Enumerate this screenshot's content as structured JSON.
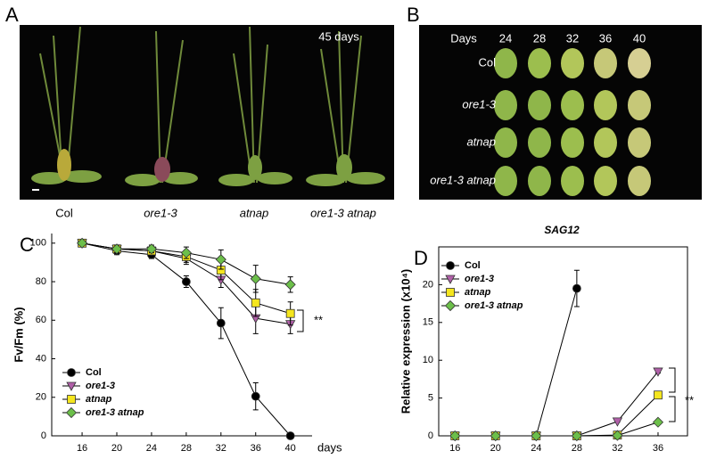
{
  "panel_a": {
    "letter": "A",
    "age": "45 days",
    "labels": [
      "Col",
      "ore1-3",
      "atnap",
      "ore1-3 atnap"
    ]
  },
  "panel_b": {
    "letter": "B",
    "header": "Days",
    "days": [
      24,
      28,
      32,
      36,
      40
    ],
    "rows": [
      "Col",
      "ore1-3",
      "atnap",
      "ore1-3 atnap"
    ]
  },
  "chart_data": [
    {
      "type": "line",
      "letter": "C",
      "ylabel": "Fv/Fm (%)",
      "xlabel": "days",
      "annotation": "**",
      "legend": "lower left",
      "box": false,
      "x": [
        16,
        20,
        24,
        28,
        32,
        36,
        40
      ],
      "xlim": [
        12.5,
        42.5
      ],
      "xticks": [
        16,
        20,
        24,
        28,
        32,
        36,
        40
      ],
      "ylim": [
        0,
        105
      ],
      "yticks": [
        0,
        20,
        40,
        60,
        80,
        100
      ],
      "series": [
        {
          "name": "Col",
          "color": "#000000",
          "marker": "circle",
          "values": [
            100,
            96,
            94,
            80,
            58.5,
            20.5,
            0
          ],
          "errors": [
            1,
            2,
            2,
            3,
            8,
            7,
            0
          ]
        },
        {
          "name": "ore1-3",
          "color": "#b05fa8",
          "marker": "triangle-down",
          "values": [
            100,
            97,
            96,
            92,
            81,
            61,
            58
          ],
          "errors": [
            1,
            2,
            2,
            3,
            4,
            8,
            5
          ]
        },
        {
          "name": "atnap",
          "color": "#f5e61e",
          "marker": "square",
          "values": [
            100,
            97,
            96,
            93,
            86,
            69,
            63.5
          ],
          "errors": [
            1,
            2,
            2,
            3,
            5,
            7,
            6
          ]
        },
        {
          "name": "ore1-3 atnap",
          "color": "#6cbf4a",
          "marker": "diamond",
          "values": [
            100,
            97,
            97,
            95,
            91.5,
            81.5,
            78.5
          ],
          "errors": [
            1,
            2,
            2,
            3,
            5,
            7,
            4
          ]
        }
      ]
    },
    {
      "type": "line",
      "letter": "D",
      "title": "SAG12",
      "ylabel": "Relative expression (x10⁴)",
      "annotation": "**",
      "legend": "upper left",
      "box": true,
      "x": [
        16,
        20,
        24,
        28,
        32,
        36
      ],
      "xlim": [
        14.4,
        38.9
      ],
      "xticks": [
        16,
        20,
        24,
        28,
        32,
        36
      ],
      "ylim": [
        0,
        25
      ],
      "yticks": [
        0,
        5,
        10,
        15,
        20
      ],
      "series": [
        {
          "name": "Col",
          "color": "#000000",
          "marker": "circle",
          "values": [
            0,
            0,
            0,
            19.5,
            null,
            null
          ],
          "errors": [
            0,
            0,
            0,
            2.4,
            null,
            null
          ]
        },
        {
          "name": "ore1-3",
          "color": "#b05fa8",
          "marker": "triangle-down",
          "values": [
            0,
            0,
            0,
            0,
            1.9,
            8.5
          ],
          "errors": [
            0,
            0,
            0,
            0,
            0.1,
            0.2
          ]
        },
        {
          "name": "atnap",
          "color": "#f5e61e",
          "marker": "square",
          "values": [
            0,
            0,
            0,
            0,
            0.1,
            5.4
          ],
          "errors": [
            0,
            0,
            0,
            0,
            0,
            0.2
          ]
        },
        {
          "name": "ore1-3 atnap",
          "color": "#6cbf4a",
          "marker": "diamond",
          "values": [
            0,
            0,
            0,
            0,
            0.05,
            1.8
          ],
          "errors": [
            0,
            0,
            0,
            0,
            0,
            0.1
          ]
        }
      ]
    }
  ]
}
